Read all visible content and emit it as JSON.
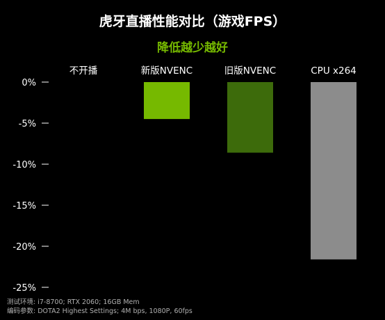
{
  "chart_data": {
    "type": "bar",
    "title": "虎牙直播性能对比（游戏FPS）",
    "subtitle": "降低越少越好",
    "categories": [
      "不开播",
      "新版NVENC",
      "旧版NVENC",
      "CPU x264"
    ],
    "values": [
      0,
      -4.5,
      -8.6,
      -21.6
    ],
    "unit": "%",
    "ylim": [
      -25,
      0
    ],
    "yticks": [
      0,
      -5,
      -10,
      -15,
      -20,
      -25
    ],
    "ytick_labels": [
      "0%",
      "-5%",
      "-10%",
      "-15%",
      "-20%",
      "-25%"
    ],
    "grid": false,
    "legend": "none",
    "colors": [
      "#000000",
      "#76b900",
      "#3d6b0b",
      "#8c8c8c"
    ],
    "footnotes": [
      "测试环境: i7-8700; RTX 2060; 16GB Mem",
      "编码参数: DOTA2 Highest Settings; 4M bps, 1080P, 60fps"
    ]
  },
  "style": {
    "background": "#000000",
    "text_color": "#ffffff",
    "subtitle_color": "#76b900",
    "footnote_color": "#b0b0b0",
    "axis_color": "#ffffff"
  }
}
